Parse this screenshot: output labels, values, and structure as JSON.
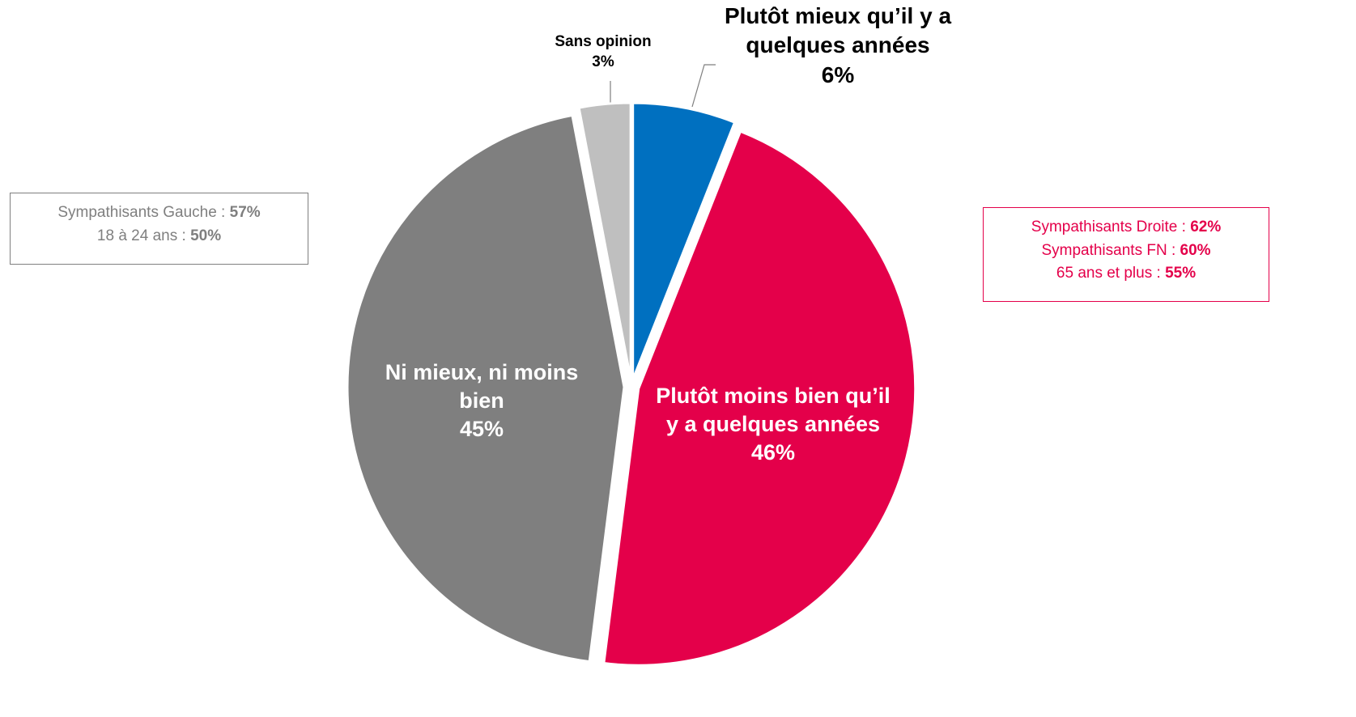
{
  "chart_data": {
    "type": "pie",
    "categories": [
      "Plutôt mieux qu’il y a quelques années",
      "Plutôt moins bien qu’il y a quelques années",
      "Ni mieux, ni moins bien",
      "Sans opinion"
    ],
    "values": [
      6,
      46,
      45,
      3
    ],
    "value_labels": [
      "6%",
      "46%",
      "45%",
      "3%"
    ],
    "colors": [
      "#0070c0",
      "#e4004a",
      "#7f7f7f",
      "#bfbfbf"
    ],
    "annotations": [
      {
        "color": "#7f7f7f",
        "lines": [
          {
            "label": "Sympathisants Gauche :",
            "value": "57%"
          },
          {
            "label": "18 à 24 ans :",
            "value": "50%"
          }
        ]
      },
      {
        "color": "#e4004a",
        "lines": [
          {
            "label": "Sympathisants Droite :",
            "value": "62%"
          },
          {
            "label": "Sympathisants FN :",
            "value": "60%"
          },
          {
            "label": "65 ans et plus :",
            "value": "55%"
          }
        ]
      }
    ]
  }
}
